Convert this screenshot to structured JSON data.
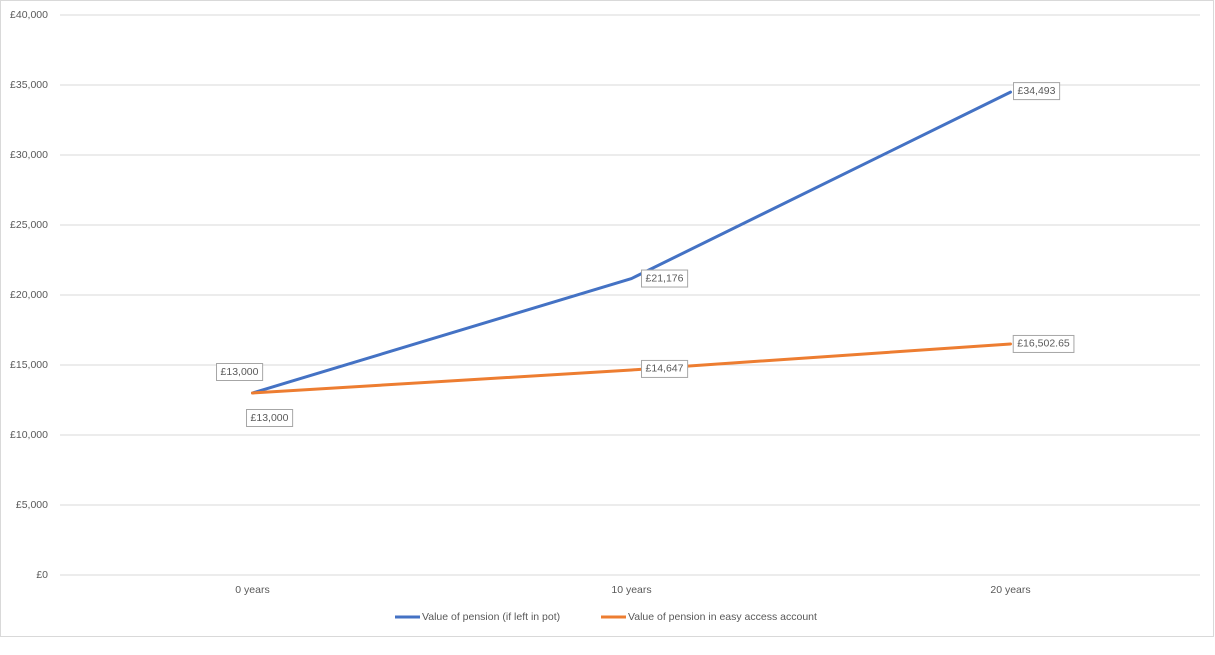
{
  "chart_data": {
    "type": "line",
    "categories": [
      "0 years",
      "10 years",
      "20 years"
    ],
    "series": [
      {
        "name": "Value of pension (if left in pot)",
        "color": "#4472c4",
        "values": [
          13000,
          21176,
          34493
        ],
        "value_labels": [
          "£13,000",
          "£21,176",
          "£34,493"
        ]
      },
      {
        "name": "Value of pension in easy access account",
        "color": "#ed7d31",
        "values": [
          13000,
          14647,
          16502.65
        ],
        "value_labels": [
          "£13,000",
          "£14,647",
          "£16,502.65"
        ]
      }
    ],
    "ylim": [
      0,
      40000
    ],
    "yticks": [
      {
        "value": 0,
        "label": "£0"
      },
      {
        "value": 5000,
        "label": "£5,000"
      },
      {
        "value": 10000,
        "label": "£10,000"
      },
      {
        "value": 15000,
        "label": "£15,000"
      },
      {
        "value": 20000,
        "label": "£20,000"
      },
      {
        "value": 25000,
        "label": "£25,000"
      },
      {
        "value": 30000,
        "label": "£30,000"
      },
      {
        "value": 35000,
        "label": "£35,000"
      },
      {
        "value": 40000,
        "label": "£40,000"
      }
    ],
    "grid": true,
    "legend": "bottom"
  }
}
